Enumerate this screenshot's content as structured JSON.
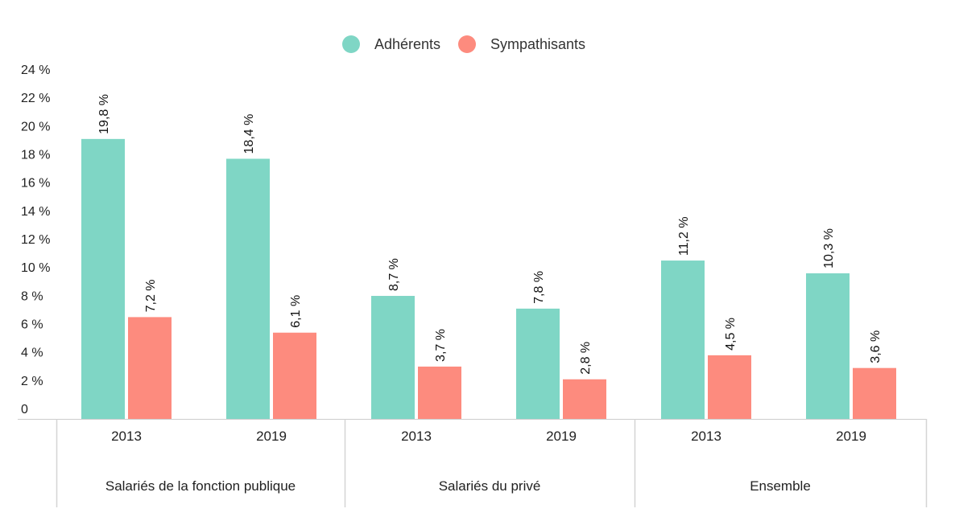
{
  "chart_data": {
    "type": "bar",
    "legend": {
      "position": "top-center"
    },
    "colors": {
      "Adhérents": "#7fd6c5",
      "Sympathisants": "#fd8b7e"
    },
    "ylim": [
      0,
      24
    ],
    "yticks": [
      "0",
      "2 %",
      "4 %",
      "6 %",
      "8 %",
      "10 %",
      "12 %",
      "14 %",
      "16 %",
      "18 %",
      "20 %",
      "22 %",
      "24 %"
    ],
    "groups": [
      "Salariés de la fonction publique",
      "Salariés du privé",
      "Ensemble"
    ],
    "categories": [
      "2013",
      "2019",
      "2013",
      "2019",
      "2013",
      "2019"
    ],
    "series": [
      {
        "name": "Adhérents",
        "values": [
          19.8,
          18.4,
          8.7,
          7.8,
          11.2,
          10.3
        ],
        "labels": [
          "19,8 %",
          "18,4 %",
          "8,7 %",
          "7,8 %",
          "11,2 %",
          "10,3 %"
        ]
      },
      {
        "name": "Sympathisants",
        "values": [
          7.2,
          6.1,
          3.7,
          2.8,
          4.5,
          3.6
        ],
        "labels": [
          "7,2 %",
          "6,1 %",
          "3,7 %",
          "2,8 %",
          "4,5 %",
          "3,6 %"
        ]
      }
    ]
  }
}
